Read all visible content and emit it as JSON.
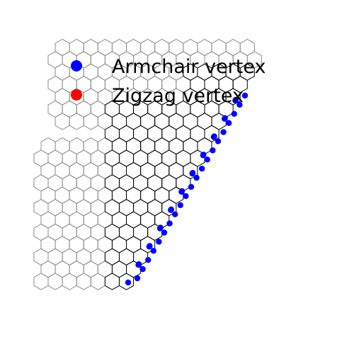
{
  "legend": {
    "entries": [
      {
        "label": "Armchair vertex",
        "color": "#0000ff"
      },
      {
        "label": "Zigzag vertex",
        "color": "#ff0000"
      }
    ]
  },
  "colors": {
    "background": "#ffffff",
    "lattice_outer": "#8c8c8c",
    "lattice_inner": "#000000",
    "armchair_marker": "#0000ff",
    "zigzag_marker": "#ff0000"
  }
}
